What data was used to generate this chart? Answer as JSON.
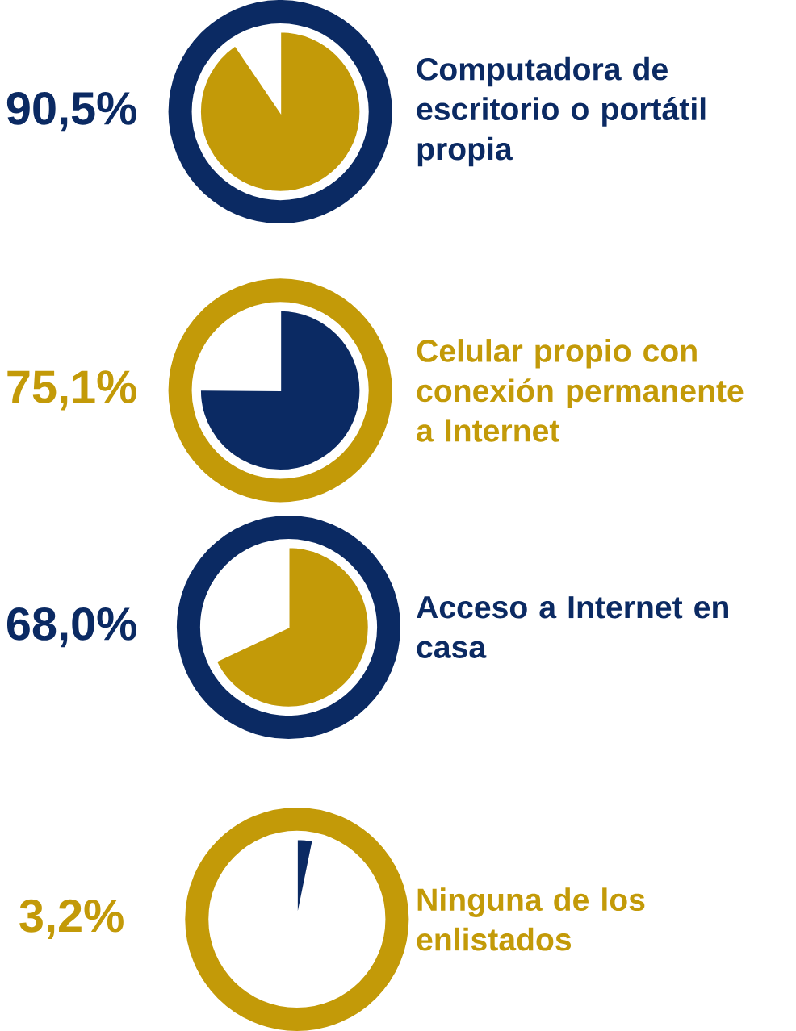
{
  "chart_data": {
    "type": "other",
    "categories": [
      "Computadora de escritorio o portátil propia",
      "Celular propio con conexión permanente a Internet",
      "Acceso a Internet en casa",
      "Ninguna de los enlistados"
    ],
    "values": [
      90.5,
      75.1,
      68.0,
      3.2
    ],
    "value_labels": [
      "90,5%",
      "75,1%",
      "68,0%",
      "3,2%"
    ],
    "colors": [
      "#0b2a63",
      "#c39a08",
      "#0b2a63",
      "#c39a08"
    ]
  }
}
